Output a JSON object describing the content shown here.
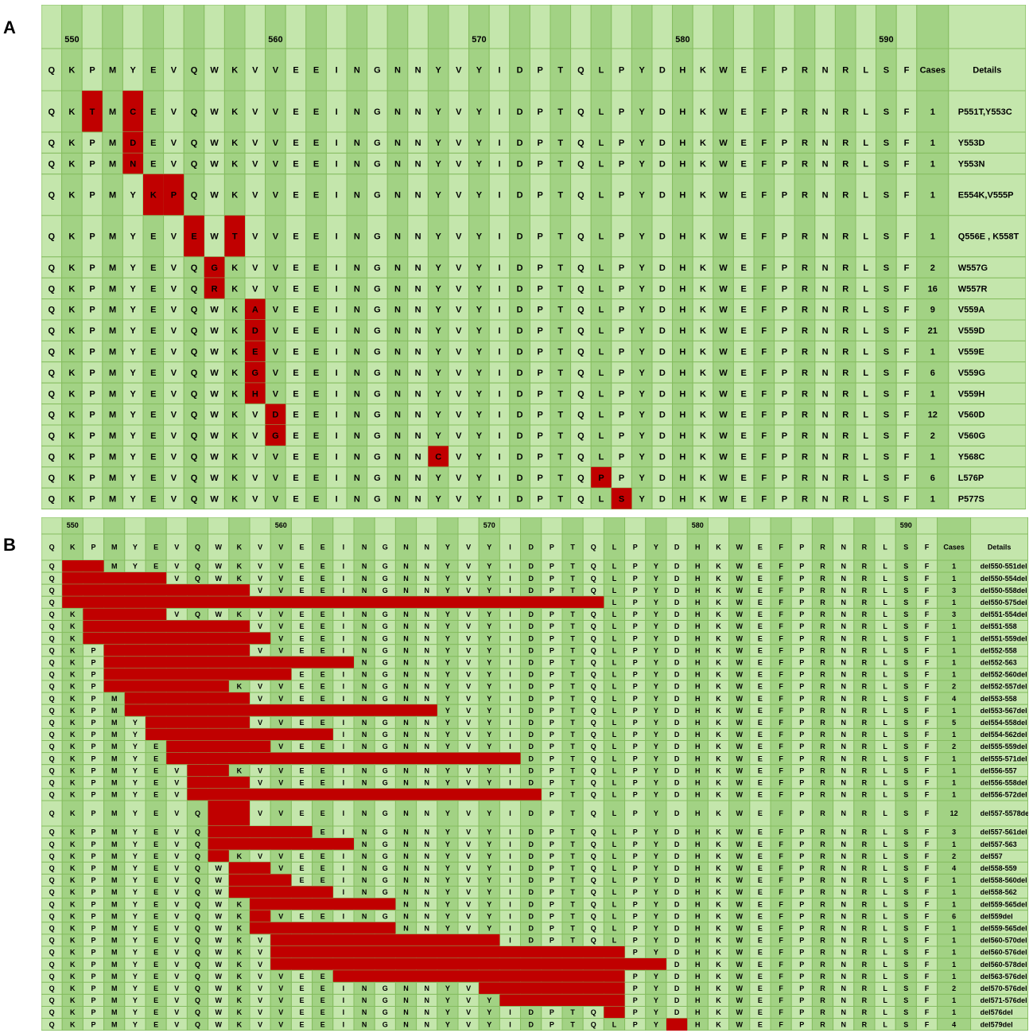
{
  "panels": {
    "a": {
      "letter": "A",
      "ruler": [
        {
          "label": "550",
          "col": 1
        },
        {
          "label": "560",
          "col": 11
        },
        {
          "label": "570",
          "col": 21
        },
        {
          "label": "580",
          "col": 31
        },
        {
          "label": "590",
          "col": 41
        }
      ],
      "sequence": [
        "Q",
        "K",
        "P",
        "M",
        "Y",
        "E",
        "V",
        "Q",
        "W",
        "K",
        "V",
        "V",
        "E",
        "E",
        "I",
        "N",
        "G",
        "N",
        "N",
        "Y",
        "V",
        "Y",
        "I",
        "D",
        "P",
        "T",
        "Q",
        "L",
        "P",
        "Y",
        "D",
        "H",
        "K",
        "W",
        "E",
        "F",
        "P",
        "R",
        "N",
        "R",
        "L",
        "S",
        "F"
      ],
      "cases_header": "Cases",
      "details_header": "Details",
      "rows": [
        {
          "subs": {
            "2": "T",
            "4": "C"
          },
          "cases": "1",
          "details": "P551T,Y553C",
          "tall": true
        },
        {
          "subs": {
            "4": "D"
          },
          "cases": "1",
          "details": "Y553D"
        },
        {
          "subs": {
            "4": "N"
          },
          "cases": "1",
          "details": "Y553N"
        },
        {
          "subs": {
            "5": "K",
            "6": "P"
          },
          "cases": "1",
          "details": "E554K,V555P",
          "tall": true
        },
        {
          "subs": {
            "7": "E",
            "9": "T"
          },
          "cases": "1",
          "details": "Q556E , K558T",
          "tall": true
        },
        {
          "subs": {
            "8": "G"
          },
          "cases": "2",
          "details": "W557G"
        },
        {
          "subs": {
            "8": "R"
          },
          "cases": "16",
          "details": "W557R"
        },
        {
          "subs": {
            "10": "A"
          },
          "cases": "9",
          "details": "V559A"
        },
        {
          "subs": {
            "10": "D"
          },
          "cases": "21",
          "details": "V559D"
        },
        {
          "subs": {
            "10": "E"
          },
          "cases": "1",
          "details": "V559E"
        },
        {
          "subs": {
            "10": "G"
          },
          "cases": "6",
          "details": "V559G"
        },
        {
          "subs": {
            "10": "H"
          },
          "cases": "1",
          "details": "V559H"
        },
        {
          "subs": {
            "11": "D"
          },
          "cases": "12",
          "details": "V560D"
        },
        {
          "subs": {
            "11": "G"
          },
          "cases": "2",
          "details": "V560G"
        },
        {
          "subs": {
            "19": "C"
          },
          "cases": "1",
          "details": "Y568C"
        },
        {
          "subs": {
            "27": "P"
          },
          "cases": "6",
          "details": "L576P"
        },
        {
          "subs": {
            "28": "S"
          },
          "cases": "1",
          "details": "P577S"
        }
      ]
    },
    "b": {
      "letter": "B",
      "ruler": [
        {
          "label": "550",
          "col": 1
        },
        {
          "label": "560",
          "col": 11
        },
        {
          "label": "570",
          "col": 21
        },
        {
          "label": "580",
          "col": 31
        },
        {
          "label": "590",
          "col": 41
        }
      ],
      "sequence": [
        "Q",
        "K",
        "P",
        "M",
        "Y",
        "E",
        "V",
        "Q",
        "W",
        "K",
        "V",
        "V",
        "E",
        "E",
        "I",
        "N",
        "G",
        "N",
        "N",
        "Y",
        "V",
        "Y",
        "I",
        "D",
        "P",
        "T",
        "Q",
        "L",
        "P",
        "Y",
        "D",
        "H",
        "K",
        "W",
        "E",
        "F",
        "P",
        "R",
        "N",
        "R",
        "L",
        "S",
        "F"
      ],
      "cases_header": "Cases",
      "details_header": "Details",
      "rows": [
        {
          "del": [
            1,
            2
          ],
          "cases": "1",
          "details": "del550-551del"
        },
        {
          "del": [
            1,
            5
          ],
          "cases": "1",
          "details": "del550-554del"
        },
        {
          "del": [
            1,
            9
          ],
          "cases": "3",
          "details": "del550-558del"
        },
        {
          "del": [
            1,
            26
          ],
          "cases": "1",
          "details": "del550-575del"
        },
        {
          "del": [
            2,
            5
          ],
          "cases": "3",
          "details": "del551-554del"
        },
        {
          "del": [
            2,
            9
          ],
          "cases": "1",
          "details": "del551-558"
        },
        {
          "del": [
            2,
            10
          ],
          "cases": "1",
          "details": "del551-559del"
        },
        {
          "del": [
            3,
            9
          ],
          "cases": "1",
          "details": "del552-558"
        },
        {
          "del": [
            3,
            14
          ],
          "cases": "1",
          "details": "del552-563"
        },
        {
          "del": [
            3,
            11
          ],
          "cases": "1",
          "details": "del552-560del"
        },
        {
          "del": [
            3,
            8
          ],
          "cases": "2",
          "details": "del552-557del"
        },
        {
          "del": [
            4,
            9
          ],
          "cases": "4",
          "details": "del553-558"
        },
        {
          "del": [
            4,
            18
          ],
          "cases": "1",
          "details": "del553-567del"
        },
        {
          "del": [
            5,
            9
          ],
          "cases": "5",
          "details": "del554-558del"
        },
        {
          "del": [
            5,
            13
          ],
          "cases": "1",
          "details": "del554-562del"
        },
        {
          "del": [
            6,
            10
          ],
          "cases": "2",
          "details": "del555-559del"
        },
        {
          "del": [
            6,
            22
          ],
          "cases": "1",
          "details": "del555-571del"
        },
        {
          "del": [
            7,
            8
          ],
          "cases": "1",
          "details": "del556-557"
        },
        {
          "del": [
            7,
            9
          ],
          "cases": "1",
          "details": "del556-558del"
        },
        {
          "del": [
            7,
            23
          ],
          "cases": "1",
          "details": "del556-572del"
        },
        {
          "del": [
            8,
            9
          ],
          "cases": "12",
          "details": "del557-5578del",
          "tall": true
        },
        {
          "del": [
            8,
            12
          ],
          "cases": "3",
          "details": "del557-561del"
        },
        {
          "del": [
            8,
            14
          ],
          "cases": "1",
          "details": "del557-563"
        },
        {
          "del": [
            8,
            8
          ],
          "cases": "2",
          "details": "del557"
        },
        {
          "del": [
            9,
            10
          ],
          "cases": "4",
          "details": "del558-559"
        },
        {
          "del": [
            9,
            11
          ],
          "cases": "1",
          "details": "del558-560del"
        },
        {
          "del": [
            9,
            13
          ],
          "cases": "1",
          "details": "del558-562"
        },
        {
          "del": [
            10,
            16
          ],
          "cases": "1",
          "details": "del559-565del"
        },
        {
          "del": [
            10,
            10
          ],
          "cases": "6",
          "details": "del559del"
        },
        {
          "del": [
            10,
            16
          ],
          "cases": "1",
          "details": "del559-565del"
        },
        {
          "del": [
            11,
            21
          ],
          "cases": "1",
          "details": "del560-570del"
        },
        {
          "del": [
            11,
            27
          ],
          "cases": "1",
          "details": "del560-576del"
        },
        {
          "del": [
            11,
            29
          ],
          "cases": "1",
          "details": "del560-578del"
        },
        {
          "del": [
            14,
            27
          ],
          "cases": "1",
          "details": "del563-576del"
        },
        {
          "del": [
            21,
            27
          ],
          "cases": "2",
          "details": "del570-576del"
        },
        {
          "del": [
            22,
            27
          ],
          "cases": "1",
          "details": "del571-576del"
        },
        {
          "del": [
            27,
            27
          ],
          "cases": "1",
          "details": "del576del"
        },
        {
          "del": [
            30,
            30
          ],
          "cases": "4",
          "details": "del579del"
        }
      ]
    }
  },
  "colors": {
    "cell_light": "#c4e6ac",
    "cell_dark": "#a2d284",
    "grid": "#86bd60",
    "highlight": "#c00000",
    "text": "#000000"
  }
}
